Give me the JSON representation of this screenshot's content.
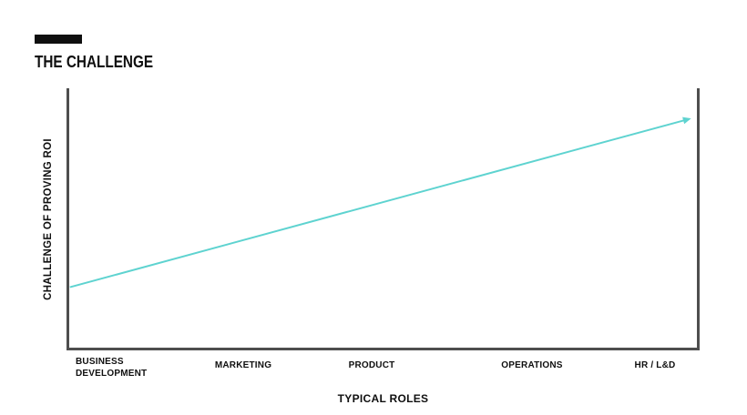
{
  "slide": {
    "title": "THE CHALLENGE"
  },
  "chart_data": {
    "type": "line",
    "title": "THE CHALLENGE",
    "xlabel": "TYPICAL ROLES",
    "ylabel": "CHALLENGE OF PROVING ROI",
    "categories": [
      "BUSINESS DEVELOPMENT",
      "MARKETING",
      "PRODUCT",
      "OPERATIONS",
      "HR / L&D"
    ],
    "series": [
      {
        "name": "CHALLENGE OF PROVING ROI",
        "values": [
          0.27,
          0.42,
          0.55,
          0.72,
          0.84
        ]
      }
    ],
    "ylim": [
      0,
      1
    ],
    "y_tick_labels": "none",
    "x_tick_labels": [
      "BUSINESS DEVELOPMENT",
      "MARKETING",
      "PRODUCT",
      "OPERATIONS",
      "HR / L&D"
    ],
    "grid": false,
    "legend_position": "none",
    "line_color": "#5ed3d0",
    "axis_color": "#4e4e4e",
    "trend_arrow": {
      "x_start_frac": 0.001,
      "y_start_frac": 0.233,
      "x_end_frac": 0.988,
      "y_end_frac": 0.882,
      "arrowhead": true
    }
  }
}
